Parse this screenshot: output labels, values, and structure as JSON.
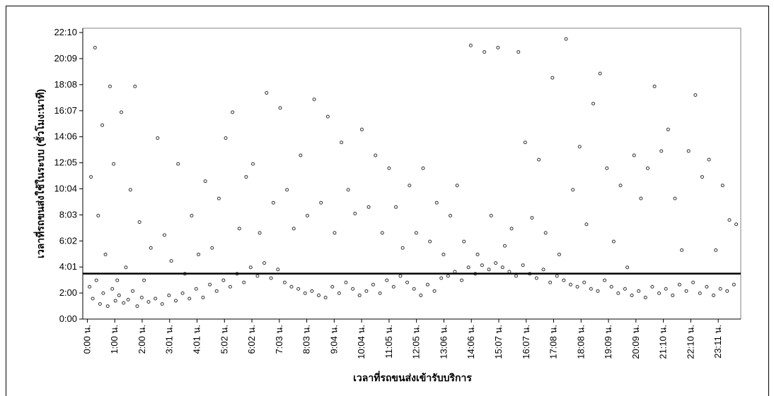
{
  "chart_data": {
    "type": "scatter",
    "x_label": "เวลาที่รถขนส่งเข้ารับบริการ",
    "y_label": "เวลาที่รถขนส่งใช้ในระบบ (ชั่วโมง:นาที)",
    "xlim": [
      -10,
      1440
    ],
    "ylim": [
      0,
      1350
    ],
    "xticks": [
      {
        "value": 0,
        "label": "0:00 น."
      },
      {
        "value": 60.45,
        "label": "1:00 น."
      },
      {
        "value": 120.9,
        "label": "2:00 น."
      },
      {
        "value": 181.35,
        "label": "3:01 น."
      },
      {
        "value": 241.8,
        "label": "4:01 น."
      },
      {
        "value": 302.25,
        "label": "5:02 น."
      },
      {
        "value": 362.7,
        "label": "6:02 น."
      },
      {
        "value": 423.15,
        "label": "7:03 น."
      },
      {
        "value": 483.6,
        "label": "8:03 น."
      },
      {
        "value": 544.05,
        "label": "9:04 น."
      },
      {
        "value": 604.5,
        "label": "10:04 น."
      },
      {
        "value": 664.95,
        "label": "11:05 น."
      },
      {
        "value": 725.4,
        "label": "12:05 น."
      },
      {
        "value": 785.85,
        "label": "13:06 น."
      },
      {
        "value": 846.3,
        "label": "14:06 น."
      },
      {
        "value": 906.75,
        "label": "15:07 น."
      },
      {
        "value": 967.2,
        "label": "16:07 น."
      },
      {
        "value": 1027.65,
        "label": "17:08 น."
      },
      {
        "value": 1088.1,
        "label": "18:08 น."
      },
      {
        "value": 1148.55,
        "label": "19:09 น."
      },
      {
        "value": 1209,
        "label": "20:09 น."
      },
      {
        "value": 1269.45,
        "label": "21:10 น."
      },
      {
        "value": 1329.9,
        "label": "22:10 น."
      },
      {
        "value": 1390.35,
        "label": "23:11 น."
      }
    ],
    "yticks": [
      {
        "value": 0,
        "label": "0:00"
      },
      {
        "value": 120.9,
        "label": "2:00"
      },
      {
        "value": 241.8,
        "label": "4:01"
      },
      {
        "value": 362.7,
        "label": "6:02"
      },
      {
        "value": 483.6,
        "label": "8:03"
      },
      {
        "value": 604.5,
        "label": "10:04"
      },
      {
        "value": 725.4,
        "label": "12:05"
      },
      {
        "value": 846.3,
        "label": "14:06"
      },
      {
        "value": 967.2,
        "label": "16:07"
      },
      {
        "value": 1088.1,
        "label": "18:08"
      },
      {
        "value": 1209,
        "label": "20:09"
      },
      {
        "value": 1329.9,
        "label": "22:10"
      }
    ],
    "reference_line": 211,
    "reference_color": "#000000",
    "series": [
      {
        "color": "#333333",
        "x": [
          5,
          12,
          20,
          28,
          35,
          45,
          55,
          62,
          70,
          80,
          90,
          100,
          110,
          120,
          135,
          150,
          165,
          180,
          195,
          210,
          225,
          240,
          255,
          270,
          285,
          300,
          315,
          330,
          345,
          360,
          375,
          390,
          405,
          420,
          435,
          450,
          465,
          480,
          495,
          510,
          525,
          540,
          555,
          570,
          585,
          600,
          615,
          630,
          645,
          660,
          675,
          690,
          705,
          720,
          735,
          750,
          765,
          780,
          795,
          810,
          825,
          840,
          855,
          870,
          885,
          900,
          915,
          930,
          945,
          960,
          975,
          990,
          1005,
          1020,
          1035,
          1050,
          1065,
          1080,
          1095,
          1110,
          1125,
          1140,
          1155,
          1170,
          1185,
          1200,
          1215,
          1230,
          1245,
          1260,
          1275,
          1290,
          1305,
          1320,
          1335,
          1350,
          1365,
          1380,
          1395,
          1410,
          1425
        ],
        "values": [
          150,
          95,
          180,
          70,
          120,
          60,
          140,
          85,
          110,
          75,
          90,
          130,
          60,
          100,
          80,
          95,
          70,
          110,
          85,
          120,
          95,
          140,
          100,
          160,
          130,
          180,
          150,
          210,
          170,
          240,
          200,
          260,
          190,
          230,
          170,
          150,
          140,
          120,
          130,
          110,
          100,
          150,
          120,
          170,
          140,
          110,
          130,
          160,
          120,
          180,
          150,
          200,
          170,
          140,
          110,
          160,
          130,
          190,
          200,
          220,
          180,
          240,
          210,
          250,
          230,
          260,
          240,
          220,
          200,
          250,
          210,
          190,
          230,
          170,
          200,
          180,
          160,
          150,
          170,
          140,
          130,
          180,
          150,
          120,
          140,
          110,
          130,
          100,
          150,
          120,
          140,
          110,
          160,
          130,
          170,
          120,
          150,
          110,
          140,
          130,
          160
        ]
      },
      {
        "color": "#333333",
        "x": [
          8,
          17,
          24,
          33,
          40,
          50,
          58,
          66,
          75,
          85,
          95,
          105,
          115,
          125,
          140,
          155,
          170,
          185,
          200,
          215,
          230,
          245,
          260,
          275,
          290,
          305,
          320,
          335,
          350,
          365,
          380,
          395,
          410,
          425,
          440,
          455,
          470,
          485,
          500,
          515,
          530,
          545,
          560,
          575,
          590,
          605,
          620,
          635,
          650,
          665,
          680,
          695,
          710,
          725,
          740,
          755,
          770,
          785,
          800,
          815,
          830,
          845,
          860,
          875,
          890,
          905,
          920,
          935,
          950,
          965,
          980,
          995,
          1010,
          1025,
          1040,
          1055,
          1070,
          1085,
          1100,
          1115,
          1130,
          1145,
          1160,
          1175,
          1190,
          1205,
          1220,
          1235,
          1250,
          1265,
          1280,
          1295,
          1310,
          1325,
          1340,
          1355,
          1370,
          1385,
          1400,
          1415,
          1430
        ],
        "values": [
          660,
          1260,
          480,
          900,
          300,
          1080,
          720,
          180,
          960,
          240,
          600,
          1080,
          450,
          180,
          330,
          840,
          390,
          270,
          720,
          210,
          480,
          300,
          640,
          330,
          560,
          840,
          960,
          420,
          660,
          720,
          400,
          1050,
          540,
          980,
          600,
          420,
          760,
          480,
          1020,
          540,
          940,
          400,
          820,
          600,
          490,
          880,
          520,
          760,
          400,
          700,
          520,
          330,
          620,
          400,
          700,
          360,
          540,
          300,
          480,
          620,
          360,
          1270,
          300,
          1240,
          480,
          1260,
          340,
          420,
          1240,
          820,
          470,
          740,
          400,
          1120,
          300,
          1300,
          600,
          800,
          440,
          1000,
          1140,
          700,
          360,
          620,
          240,
          760,
          560,
          700,
          1080,
          780,
          880,
          560,
          320,
          780,
          1040,
          660,
          740,
          320,
          620,
          460,
          440
        ]
      }
    ]
  }
}
